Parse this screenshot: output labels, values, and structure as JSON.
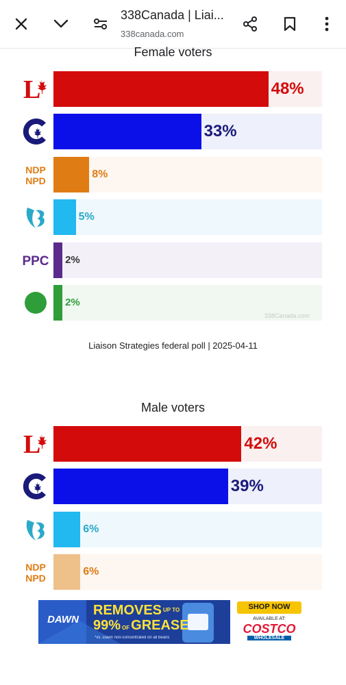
{
  "browser": {
    "title": "338Canada | Liai...",
    "url": "338canada.com"
  },
  "colors": {
    "lpc": "#d40b0b",
    "lpc_bg": "#fbf0f0",
    "cpc": "#0c10e8",
    "cpc_text": "#1a1a7a",
    "cpc_bg": "#eef0fb",
    "ndp": "#e07c14",
    "ndp_bg": "#fdf6f1",
    "ndp_light": "#eec08a",
    "bq": "#22b8f0",
    "bq_text": "#2aa9c9",
    "bq_bg": "#eef8fd",
    "ppc": "#5b2a8c",
    "ppc_bg": "#f3f0f8",
    "gpc": "#2f9e3a",
    "gpc_bg": "#f0f8f1"
  },
  "female": {
    "title": "Female voters",
    "watermark": "338Canada.com",
    "caption": "Liaison Strategies federal poll | 2025-04-11",
    "rows": [
      {
        "party": "LPC",
        "value": 48,
        "label": "48%"
      },
      {
        "party": "CPC",
        "value": 33,
        "label": "33%"
      },
      {
        "party": "NDP",
        "value": 8,
        "label": "8%"
      },
      {
        "party": "BQ",
        "value": 5,
        "label": "5%"
      },
      {
        "party": "PPC",
        "value": 2,
        "label": "2%"
      },
      {
        "party": "GPC",
        "value": 2,
        "label": "2%"
      }
    ]
  },
  "male": {
    "title": "Male voters",
    "rows": [
      {
        "party": "LPC",
        "value": 42,
        "label": "42%"
      },
      {
        "party": "CPC",
        "value": 39,
        "label": "39%"
      },
      {
        "party": "BQ",
        "value": 6,
        "label": "6%"
      },
      {
        "party": "NDP",
        "value": 6,
        "label": "6%"
      }
    ]
  },
  "logos": {
    "ndp_line1": "NDP",
    "ndp_line2": "NPD",
    "ppc": "PPC"
  },
  "ad": {
    "brand": "DAWN",
    "headline_1": "REMOVES",
    "headline_1_sup": "UP TO",
    "headline_2": "99%",
    "headline_2_sup": "OF",
    "headline_3": "GREASE",
    "fineprint": "*vs. Dawn non-concentrated on all beans",
    "cta": "SHOP NOW",
    "available": "AVAILABLE AT:",
    "retailer": "COSTCO",
    "retailer_sub": "WHOLESALE"
  }
}
